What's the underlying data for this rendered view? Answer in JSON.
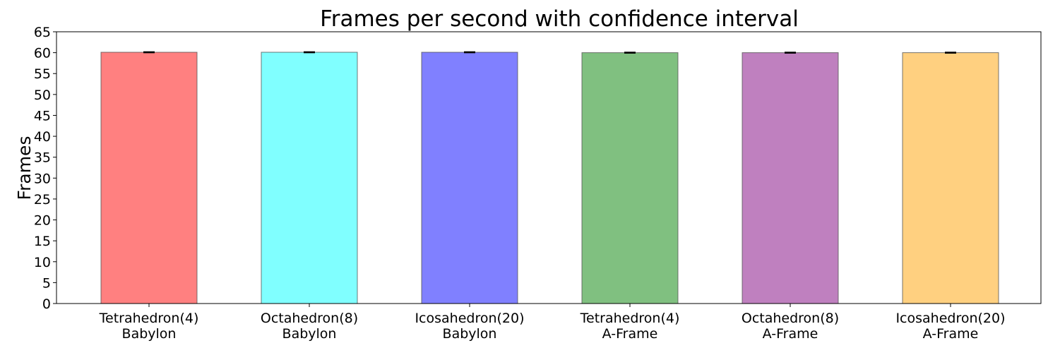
{
  "chart_data": {
    "type": "bar",
    "title": "Frames per second with confidence interval",
    "ylabel": "Frames",
    "xlabel": "",
    "ylim": [
      0,
      65
    ],
    "yticks": [
      0,
      5,
      10,
      15,
      20,
      25,
      30,
      35,
      40,
      45,
      50,
      55,
      60,
      65
    ],
    "grid": false,
    "categories": [
      [
        "Tetrahedron(4)",
        "Babylon"
      ],
      [
        "Octahedron(8)",
        "Babylon"
      ],
      [
        "Icosahedron(20)",
        "Babylon"
      ],
      [
        "Tetrahedron(4)",
        "A-Frame"
      ],
      [
        "Octahedron(8)",
        "A-Frame"
      ],
      [
        "Icosahedron(20)",
        "A-Frame"
      ]
    ],
    "values": [
      60.1,
      60.1,
      60.1,
      60.0,
      60.0,
      60.0
    ],
    "error": [
      0.1,
      0.1,
      0.1,
      0.1,
      0.1,
      0.1
    ],
    "colors": [
      "#ff8080",
      "#80ffff",
      "#8080ff",
      "#80c080",
      "#bf80bf",
      "#ffd080"
    ]
  }
}
